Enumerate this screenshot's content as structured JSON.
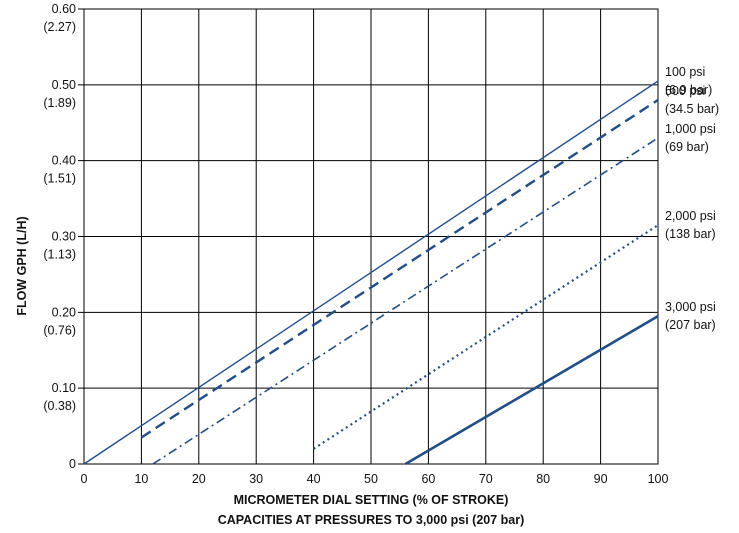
{
  "chart_data": {
    "type": "line",
    "ylabel": "FLOW GPH (L/H)",
    "xlabel_line1": "MICROMETER DIAL SETTING (% OF STROKE)",
    "xlabel_line2": "CAPACITIES AT PRESSURES TO 3,000 psi (207 bar)",
    "xlim": [
      0,
      100
    ],
    "ylim": [
      0,
      0.6
    ],
    "grid": true,
    "x_ticks": [
      "0",
      "10",
      "20",
      "30",
      "40",
      "50",
      "60",
      "70",
      "80",
      "90",
      "100"
    ],
    "y_ticks": [
      {
        "value": 0,
        "gph": "0",
        "lph": ""
      },
      {
        "value": 0.1,
        "gph": "0.10",
        "lph": "(0.38)"
      },
      {
        "value": 0.2,
        "gph": "0.20",
        "lph": "(0.76)"
      },
      {
        "value": 0.3,
        "gph": "0.30",
        "lph": "(1.13)"
      },
      {
        "value": 0.4,
        "gph": "0.40",
        "lph": "(1.51)"
      },
      {
        "value": 0.5,
        "gph": "0.50",
        "lph": "(1.89)"
      },
      {
        "value": 0.6,
        "gph": "0.60",
        "lph": "(2.27)"
      }
    ],
    "line_color": "#1f4e8c",
    "series": [
      {
        "name": "100 psi",
        "name2": "(6.9 bar)",
        "style": "solid-thin",
        "x": [
          0,
          100
        ],
        "y": [
          0,
          0.505
        ]
      },
      {
        "name": "500 psi",
        "name2": "(34.5 bar)",
        "style": "dashed",
        "x": [
          10,
          100
        ],
        "y": [
          0.035,
          0.48
        ]
      },
      {
        "name": "1,000 psi",
        "name2": "(69 bar)",
        "style": "dash-dot",
        "x": [
          12,
          100
        ],
        "y": [
          0,
          0.43
        ]
      },
      {
        "name": "2,000 psi",
        "name2": "(138 bar)",
        "style": "dotted",
        "x": [
          40,
          100
        ],
        "y": [
          0.02,
          0.315
        ]
      },
      {
        "name": "3,000 psi",
        "name2": "(207 bar)",
        "style": "solid-thick",
        "x": [
          56,
          100
        ],
        "y": [
          0,
          0.195
        ]
      }
    ]
  }
}
